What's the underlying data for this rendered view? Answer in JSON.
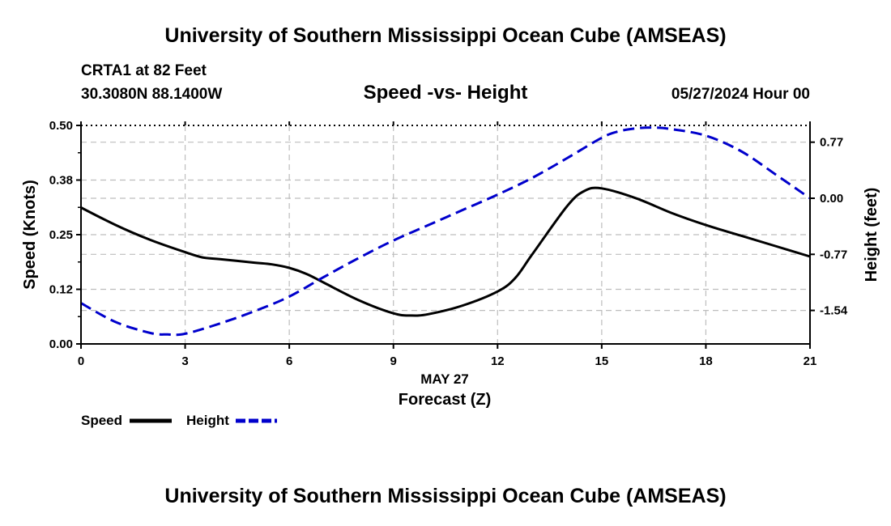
{
  "header": {
    "title_top": "University of Southern Mississippi Ocean Cube (AMSEAS)",
    "station": "CRTA1 at 82 Feet",
    "coords": "30.3080N  88.1400W",
    "subtitle": "Speed -vs- Height",
    "datetime": "05/27/2024 Hour 00",
    "title_bottom": "University of Southern Mississippi Ocean Cube (AMSEAS)"
  },
  "legend": {
    "speed_label": "Speed",
    "height_label": "Height"
  },
  "chart_data": {
    "type": "line",
    "title": "Speed -vs- Height",
    "xlabel": "Forecast (Z)",
    "xlabel_date": "MAY 27",
    "ylabel_left": "Speed (Knots)",
    "ylabel_right": "Height (feet)",
    "xlim": [
      0,
      21
    ],
    "ylim_left": [
      0,
      0.5
    ],
    "ylim_right": [
      -2.0,
      1.0
    ],
    "x_ticks": [
      0,
      3,
      6,
      9,
      12,
      15,
      18,
      21
    ],
    "x_tick_labels": [
      "0",
      "3",
      "6",
      "9",
      "12",
      "15",
      "18",
      "21"
    ],
    "y_left_ticks": [
      0.0,
      0.125,
      0.25,
      0.375,
      0.5
    ],
    "y_left_tick_labels": [
      "0.00",
      "0.12",
      "0.25",
      "0.38",
      "0.50"
    ],
    "y_right_ticks": [
      0.77,
      0.0,
      -0.77,
      -1.54
    ],
    "y_right_tick_labels": [
      "0.77",
      "0.00",
      "-0.77",
      "-1.54"
    ],
    "grid": true,
    "series": [
      {
        "name": "Speed",
        "axis": "left",
        "color": "#000000",
        "style": "solid",
        "x": [
          0,
          1,
          2,
          3,
          3.5,
          4,
          5,
          5.5,
          6,
          6.5,
          7,
          8,
          9,
          9.5,
          10,
          11,
          12,
          12.5,
          13,
          14,
          14.5,
          15,
          16,
          17,
          18,
          19,
          20,
          21
        ],
        "y": [
          0.312,
          0.272,
          0.238,
          0.21,
          0.198,
          0.194,
          0.186,
          0.182,
          0.174,
          0.16,
          0.14,
          0.1,
          0.07,
          0.065,
          0.068,
          0.088,
          0.12,
          0.15,
          0.205,
          0.315,
          0.35,
          0.356,
          0.333,
          0.3,
          0.272,
          0.248,
          0.224,
          0.2
        ]
      },
      {
        "name": "Height",
        "axis": "right",
        "color": "#0000cc",
        "style": "dashed",
        "x": [
          0,
          1,
          2,
          2.5,
          3,
          4,
          5,
          6,
          7,
          8,
          9,
          10,
          11,
          12,
          13,
          14,
          15,
          15.5,
          16,
          16.5,
          17,
          18,
          19,
          20,
          21
        ],
        "y": [
          -1.44,
          -1.7,
          -1.85,
          -1.87,
          -1.86,
          -1.72,
          -1.55,
          -1.35,
          -1.08,
          -0.82,
          -0.58,
          -0.37,
          -0.16,
          0.05,
          0.28,
          0.55,
          0.83,
          0.92,
          0.96,
          0.97,
          0.95,
          0.86,
          0.65,
          0.33,
          0.0
        ]
      }
    ]
  }
}
